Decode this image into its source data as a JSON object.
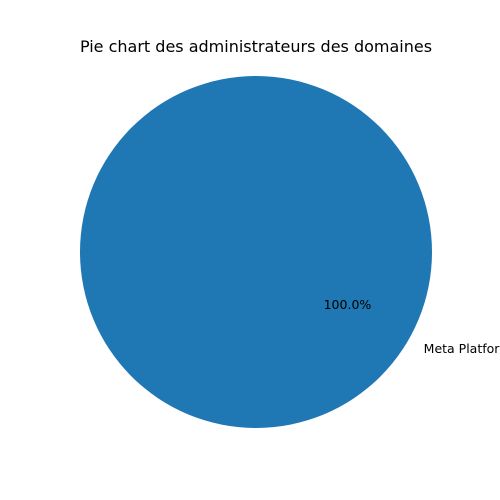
{
  "chart_data": {
    "type": "pie",
    "title": "Pie chart des administrateurs des domaines",
    "slices": [
      {
        "label": "Meta Platforms",
        "value": 100.0,
        "pct_label": "100.0%",
        "color": "#1f77b4"
      }
    ],
    "legend": "none"
  }
}
